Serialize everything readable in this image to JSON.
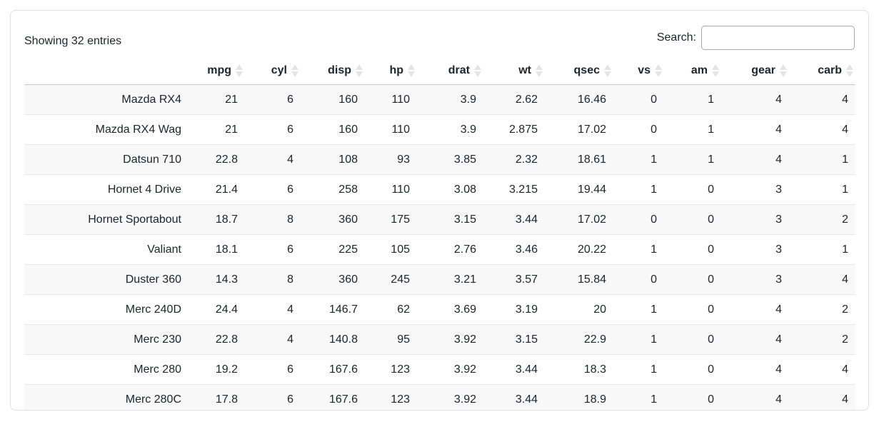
{
  "info_text": "Showing 32 entries",
  "search": {
    "label": "Search:",
    "value": "",
    "placeholder": ""
  },
  "table": {
    "columns": [
      "mpg",
      "cyl",
      "disp",
      "hp",
      "drat",
      "wt",
      "qsec",
      "vs",
      "am",
      "gear",
      "carb"
    ],
    "rows": [
      {
        "name": "Mazda RX4",
        "values": [
          "21",
          "6",
          "160",
          "110",
          "3.9",
          "2.62",
          "16.46",
          "0",
          "1",
          "4",
          "4"
        ]
      },
      {
        "name": "Mazda RX4 Wag",
        "values": [
          "21",
          "6",
          "160",
          "110",
          "3.9",
          "2.875",
          "17.02",
          "0",
          "1",
          "4",
          "4"
        ]
      },
      {
        "name": "Datsun 710",
        "values": [
          "22.8",
          "4",
          "108",
          "93",
          "3.85",
          "2.32",
          "18.61",
          "1",
          "1",
          "4",
          "1"
        ]
      },
      {
        "name": "Hornet 4 Drive",
        "values": [
          "21.4",
          "6",
          "258",
          "110",
          "3.08",
          "3.215",
          "19.44",
          "1",
          "0",
          "3",
          "1"
        ]
      },
      {
        "name": "Hornet Sportabout",
        "values": [
          "18.7",
          "8",
          "360",
          "175",
          "3.15",
          "3.44",
          "17.02",
          "0",
          "0",
          "3",
          "2"
        ]
      },
      {
        "name": "Valiant",
        "values": [
          "18.1",
          "6",
          "225",
          "105",
          "2.76",
          "3.46",
          "20.22",
          "1",
          "0",
          "3",
          "1"
        ]
      },
      {
        "name": "Duster 360",
        "values": [
          "14.3",
          "8",
          "360",
          "245",
          "3.21",
          "3.57",
          "15.84",
          "0",
          "0",
          "3",
          "4"
        ]
      },
      {
        "name": "Merc 240D",
        "values": [
          "24.4",
          "4",
          "146.7",
          "62",
          "3.69",
          "3.19",
          "20",
          "1",
          "0",
          "4",
          "2"
        ]
      },
      {
        "name": "Merc 230",
        "values": [
          "22.8",
          "4",
          "140.8",
          "95",
          "3.92",
          "3.15",
          "22.9",
          "1",
          "0",
          "4",
          "2"
        ]
      },
      {
        "name": "Merc 280",
        "values": [
          "19.2",
          "6",
          "167.6",
          "123",
          "3.92",
          "3.44",
          "18.3",
          "1",
          "0",
          "4",
          "4"
        ]
      },
      {
        "name": "Merc 280C",
        "values": [
          "17.8",
          "6",
          "167.6",
          "123",
          "3.92",
          "3.44",
          "18.9",
          "1",
          "0",
          "4",
          "4"
        ]
      }
    ]
  },
  "colors": {
    "text": "#212529",
    "card_border": "#dee2e6",
    "header_border": "#c9cbcd",
    "row_border": "#e7e8ea",
    "stripe_bg": "#f8f8f9",
    "sort_icon": "#e4e4e6",
    "input_border": "#a8a8a8"
  }
}
